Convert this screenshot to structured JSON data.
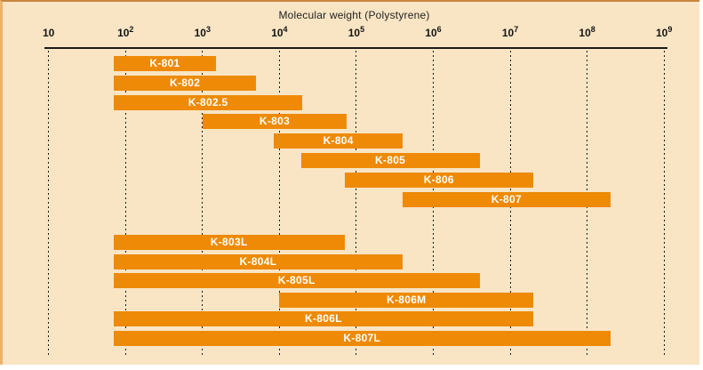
{
  "chart_data": {
    "type": "bar",
    "subtype": "horizontal-range-bars",
    "title": "Molecular weight (Polystyrene)",
    "xlabel": "Molecular weight (Polystyrene)",
    "ylabel": "",
    "x_scale": "log10",
    "x_range": [
      10,
      1000000000
    ],
    "grid": "dashed-vertical-at-each-decade",
    "legend": "none",
    "tick_base": "10",
    "tick_exponents": [
      1,
      2,
      3,
      4,
      5,
      6,
      7,
      8,
      9
    ],
    "series": [
      {
        "label": "K-801",
        "group": "standard",
        "range": [
          70,
          1500
        ]
      },
      {
        "label": "K-802",
        "group": "standard",
        "range": [
          70,
          5000
        ]
      },
      {
        "label": "K-802.5",
        "group": "standard",
        "range": [
          70,
          20000
        ]
      },
      {
        "label": "K-803",
        "group": "standard",
        "range": [
          1000,
          75000
        ]
      },
      {
        "label": "K-804",
        "group": "standard",
        "range": [
          8500,
          400000
        ]
      },
      {
        "label": "K-805",
        "group": "standard",
        "range": [
          19000,
          4000000
        ]
      },
      {
        "label": "K-806",
        "group": "standard",
        "range": [
          70000,
          20000000
        ]
      },
      {
        "label": "K-807",
        "group": "standard",
        "range": [
          400000,
          200000000
        ]
      },
      {
        "label": "K-803L",
        "group": "linear",
        "range": [
          70,
          70000
        ]
      },
      {
        "label": "K-804L",
        "group": "linear",
        "range": [
          70,
          400000
        ]
      },
      {
        "label": "K-805L",
        "group": "linear",
        "range": [
          70,
          4000000
        ]
      },
      {
        "label": "K-806M",
        "group": "linear",
        "range": [
          10000,
          20000000
        ]
      },
      {
        "label": "K-806L",
        "group": "linear",
        "range": [
          70,
          20000000
        ]
      },
      {
        "label": "K-807L",
        "group": "linear",
        "range": [
          70,
          200000000
        ]
      }
    ]
  },
  "colors": {
    "background": "#F9E5C4",
    "bar": "#EE8A05",
    "bar_label": "#FFFFFF",
    "axis": "#1A1A1A",
    "grid": "#1A1A1A",
    "edge_left": "#EDB36E",
    "edge_top": "#C9853E"
  }
}
